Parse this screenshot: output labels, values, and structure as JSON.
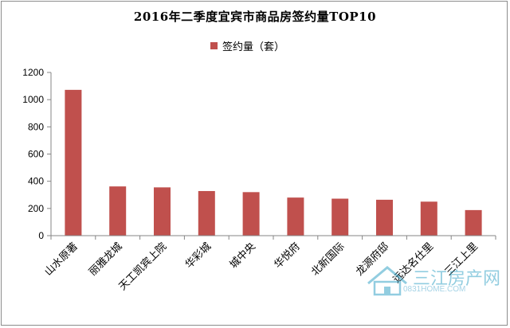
{
  "chart_data": {
    "type": "bar",
    "title": "2016年二季度宜宾市商品房签约量TOP10",
    "categories": [
      "山水原著",
      "丽雅龙城",
      "天工凯宾上院",
      "华彩城",
      "城中央",
      "华悦府",
      "北新国际",
      "龙源府邸",
      "远达名仕里",
      "三江上里"
    ],
    "series": [
      {
        "name": "签约量（套）",
        "values": [
          1072,
          362,
          355,
          328,
          320,
          280,
          272,
          264,
          250,
          188
        ],
        "color": "#c0504d"
      }
    ],
    "ylim": [
      0,
      1200
    ],
    "yticks": [
      0,
      200,
      400,
      600,
      800,
      1000,
      1200
    ],
    "grid": false,
    "legend_position": "top-center",
    "xlabel": "",
    "ylabel": ""
  },
  "watermark": {
    "text": "三江房产网",
    "url": "0831HOME.COM"
  }
}
